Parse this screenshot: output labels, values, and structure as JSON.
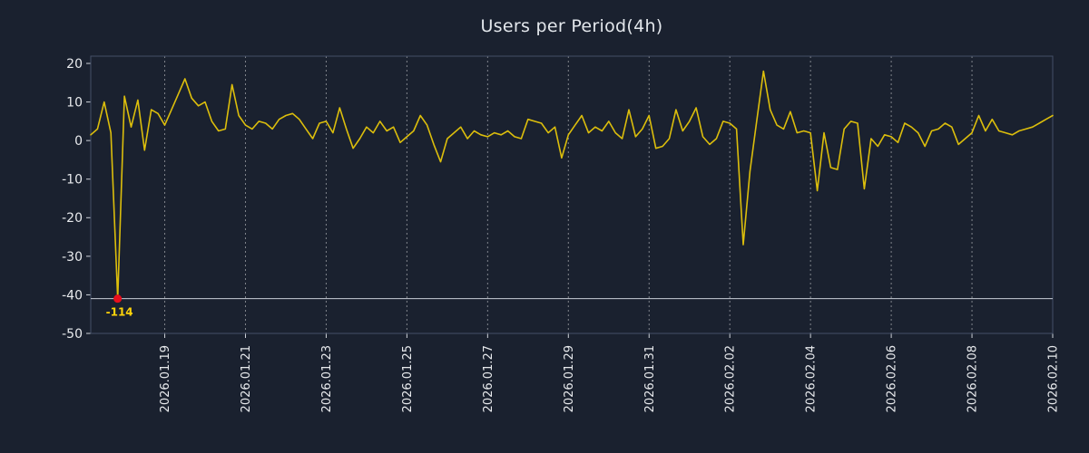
{
  "chart_data": {
    "type": "line",
    "title": "Users per Period(4h)",
    "xlabel": "",
    "ylabel": "",
    "period": "4h",
    "ylim": [
      -50,
      20
    ],
    "y_ticks": [
      20,
      10,
      0,
      -10,
      -20,
      -30,
      -40,
      -50
    ],
    "x_ticks": {
      "first_index": 11,
      "step": 12,
      "labels": [
        "2026.01.19",
        "2026.01.21",
        "2026.01.23",
        "2026.01.25",
        "2026.01.27",
        "2026.01.29",
        "2026.01.31",
        "2026.02.02",
        "2026.02.04",
        "2026.02.06",
        "2026.02.08",
        "2026.02.10"
      ]
    },
    "grid": "vertical-dashed",
    "legend": "none",
    "clip_min": -41,
    "reference_line": {
      "y": -41,
      "color": "#c9ced8"
    },
    "min_annotation": {
      "index": 4,
      "value": -114,
      "label": "-114",
      "marker_color": "#e8101c",
      "label_color": "#ffd40a"
    },
    "colors": {
      "background": "#1a212f",
      "line": "#dcbe0c",
      "grid": "#ffffff",
      "text": "#e8eaed",
      "frame": "#445067",
      "tick": "#cfd3da"
    },
    "series": [
      {
        "name": "users",
        "values": [
          1.5,
          3,
          10,
          2,
          -114,
          11.5,
          3.5,
          10.5,
          -2.5,
          8,
          7,
          4,
          8,
          12,
          16,
          11,
          9,
          10,
          5,
          2.5,
          3,
          14.5,
          6.5,
          4,
          3,
          5,
          4.5,
          3,
          5.5,
          6.5,
          7,
          5.5,
          3,
          0.5,
          4.5,
          5,
          2,
          8.5,
          3,
          -2,
          0.5,
          3.5,
          2,
          5,
          2.5,
          3.5,
          -0.5,
          1,
          2.5,
          6.5,
          4,
          -1,
          -5.5,
          0.5,
          2,
          3.5,
          0.5,
          2.5,
          1.5,
          1,
          2,
          1.5,
          2.5,
          1,
          0.5,
          5.5,
          5,
          4.5,
          2,
          3.5,
          -4.5,
          1.5,
          4,
          6.5,
          2,
          3.5,
          2.5,
          5,
          2,
          0.5,
          8,
          1,
          3,
          6.5,
          -2,
          -1.5,
          0.5,
          8,
          2.5,
          5,
          8.5,
          1,
          -1,
          0.5,
          5,
          4.5,
          3,
          -27,
          -8,
          5,
          18,
          8,
          4,
          3,
          7.5,
          2,
          2.5,
          2,
          -13,
          2,
          -7,
          -7.5,
          3,
          5,
          4.5,
          -12.5,
          0.5,
          -1.5,
          1.5,
          1,
          -0.5,
          4.5,
          3.5,
          2,
          -1.5,
          2.5,
          3,
          4.5,
          3.5,
          -1,
          0.5,
          2,
          6.5,
          2.5,
          5.5,
          2.5,
          2,
          1.5,
          2.5,
          3,
          3.5,
          4.5,
          5.5,
          6.5
        ]
      }
    ]
  }
}
